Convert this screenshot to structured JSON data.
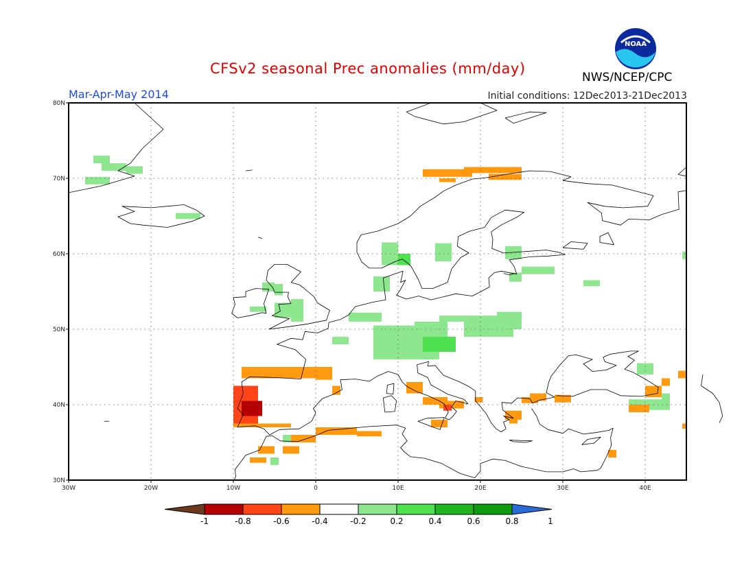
{
  "header": {
    "title": "CFSv2 seasonal Prec anomalies (mm/day)",
    "season": "Mar-Apr-May 2014",
    "initial_conditions": "Initial conditions: 12Dec2013-21Dec2013",
    "agency": "NWS/NCEP/CPC",
    "logo_text": "NOAA"
  },
  "map": {
    "lon_range": [
      -30,
      45
    ],
    "lat_range": [
      30,
      80
    ],
    "lon_ticks": [
      "30W",
      "20W",
      "10W",
      "0",
      "10E",
      "20E",
      "30E",
      "40E"
    ],
    "lat_ticks": [
      "30N",
      "40N",
      "50N",
      "60N",
      "70N",
      "80N"
    ]
  },
  "legend": {
    "labels": [
      "-1",
      "-0.8",
      "-0.6",
      "-0.4",
      "-0.2",
      "0.2",
      "0.4",
      "0.6",
      "0.8",
      "1"
    ],
    "colors": [
      "#6b3a1f",
      "#b40000",
      "#ff4418",
      "#ff9a10",
      "#ffffff",
      "#8ee68e",
      "#50e150",
      "#21b521",
      "#109a10",
      "#2a6bd8"
    ]
  }
}
